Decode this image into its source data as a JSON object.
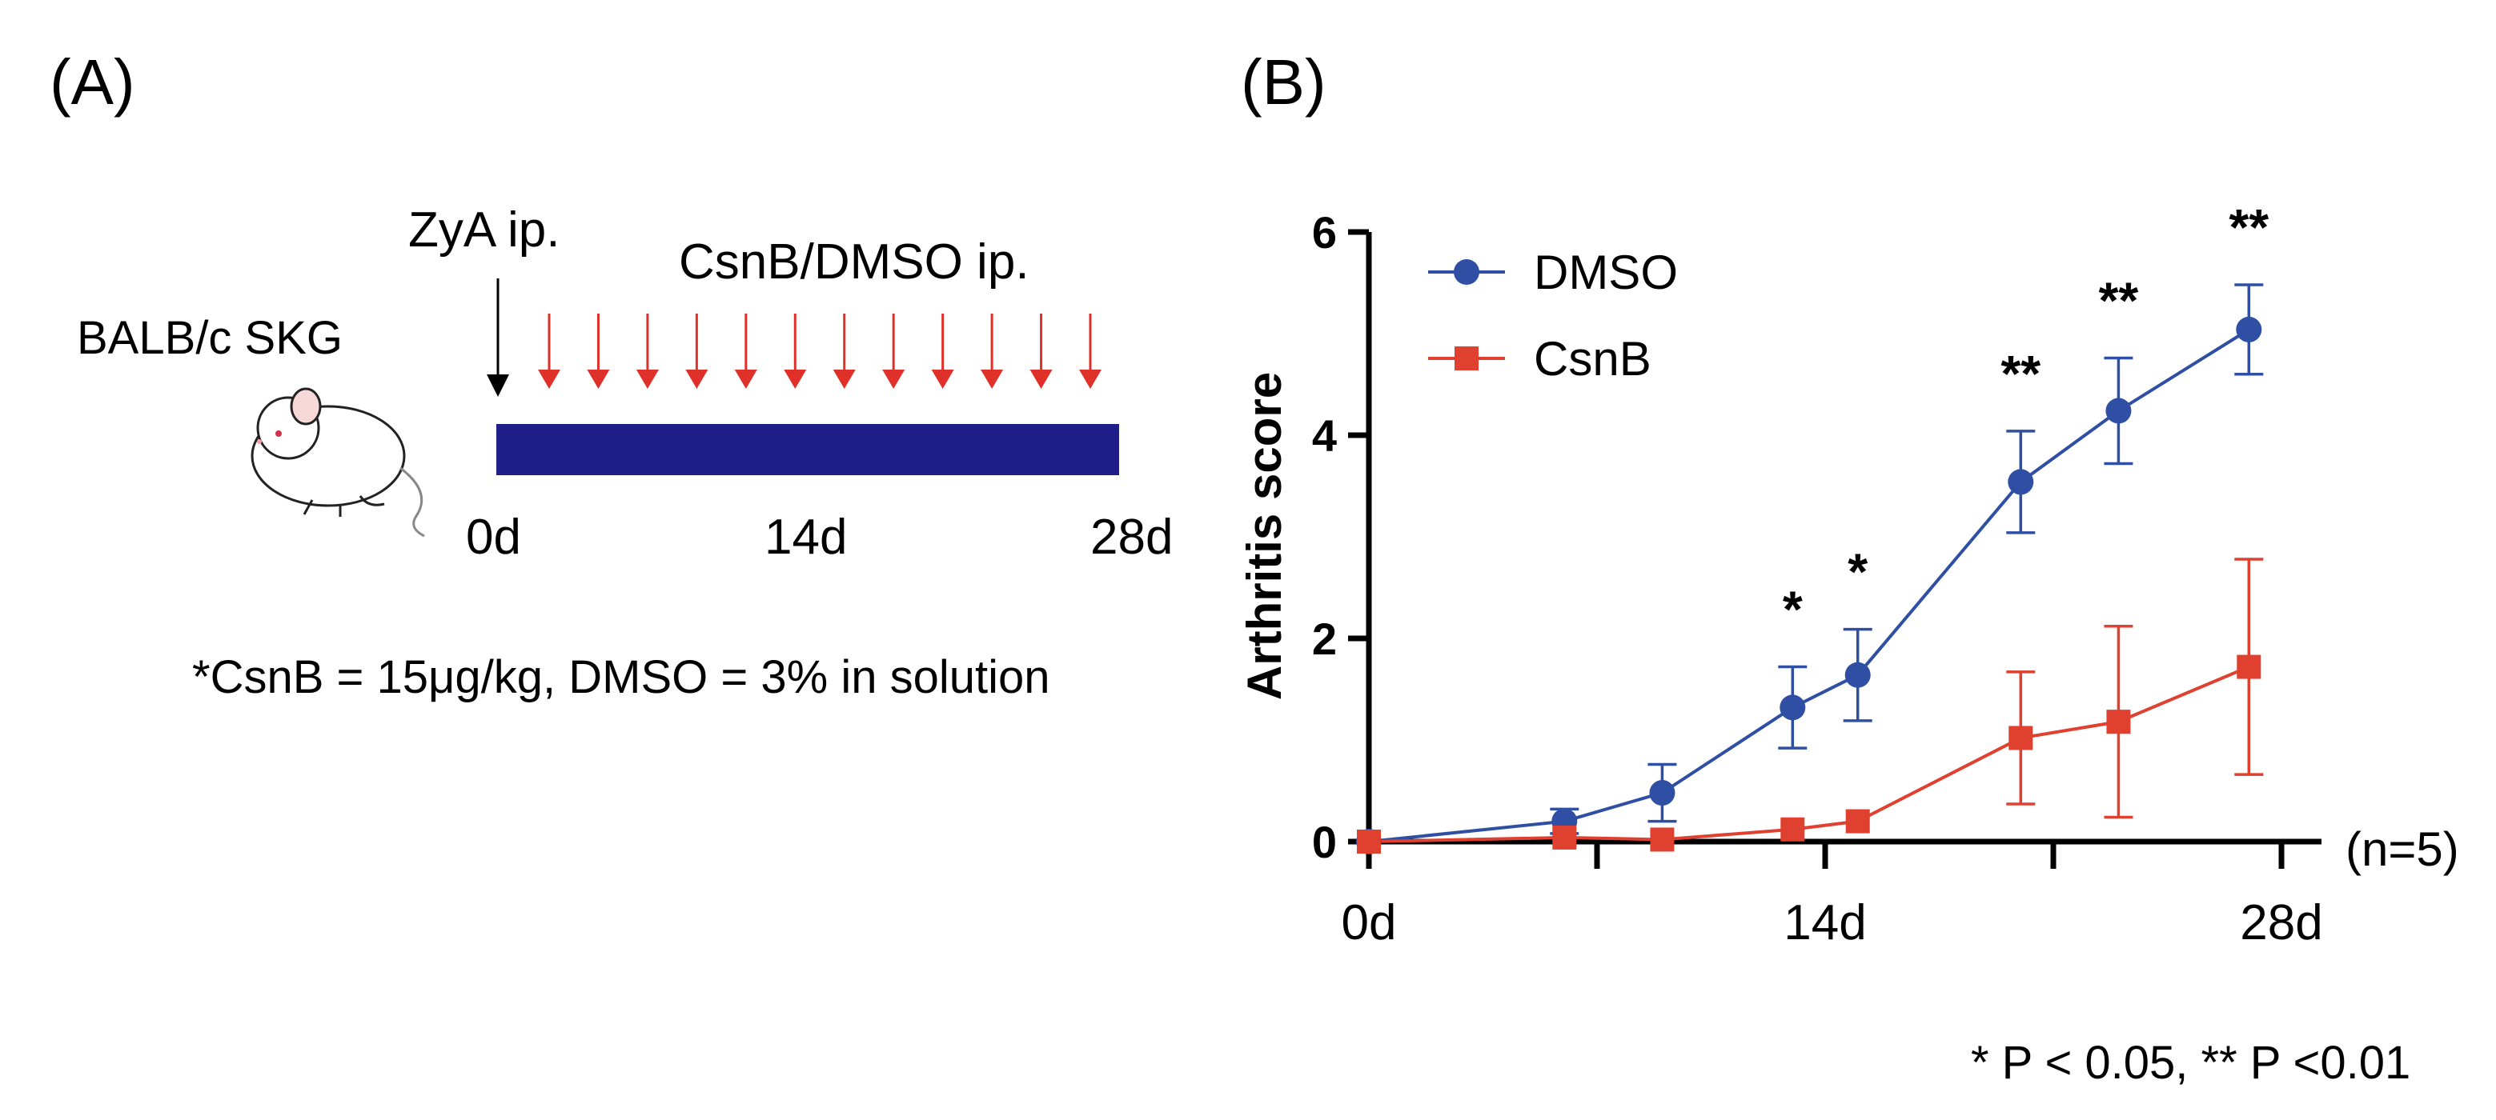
{
  "panel_a": {
    "label": "(A)",
    "strain": "BALB/c SKG",
    "zya_label": "ZyA ip.",
    "treatment_label": "CsnB/DMSO ip.",
    "injection_count": 12,
    "days": [
      "0d",
      "14d",
      "28d"
    ],
    "footnote": "*CsnB = 15μg/kg, DMSO = 3% in solution",
    "colors": {
      "bar": "#1f1f8a",
      "arrow_red": "#e0302a",
      "arrow_black": "#000000"
    },
    "mouse_icon": "mouse-icon"
  },
  "panel_b": {
    "label": "(B)",
    "n_label": "(n=5)",
    "pvalue_note": "*  P < 0.05, ** P <0.01"
  },
  "chart_data": {
    "type": "line",
    "xlabel": "",
    "ylabel": "Arthritis score",
    "xlim": [
      0,
      28
    ],
    "ylim": [
      0,
      6
    ],
    "x_ticks": [
      0,
      7,
      14,
      21,
      28
    ],
    "x_tick_labels": [
      {
        "x": 0,
        "label": "0d"
      },
      {
        "x": 14,
        "label": "14d"
      },
      {
        "x": 28,
        "label": "28d"
      }
    ],
    "y_ticks": [
      0,
      2,
      4,
      6
    ],
    "grid": false,
    "legend_position": "top-left",
    "series": [
      {
        "name": "DMSO",
        "color": "#2e4fa3",
        "marker": "circle",
        "x": [
          0,
          6,
          9,
          13,
          15,
          20,
          23,
          27
        ],
        "y": [
          0,
          0.2,
          0.48,
          1.32,
          1.64,
          3.54,
          4.24,
          5.04
        ],
        "error": [
          0,
          0.12,
          0.28,
          0.4,
          0.45,
          0.5,
          0.52,
          0.44
        ]
      },
      {
        "name": "CsnB",
        "color": "#e0402f",
        "marker": "square",
        "x": [
          0,
          6,
          9,
          13,
          15,
          20,
          23,
          27
        ],
        "y": [
          0,
          0.04,
          0.02,
          0.12,
          0.2,
          1.02,
          1.18,
          1.72
        ],
        "error": [
          0,
          0,
          0,
          0,
          0,
          0.65,
          0.94,
          1.06
        ]
      }
    ],
    "significance": [
      {
        "x": 13,
        "label": "*"
      },
      {
        "x": 15,
        "label": "*"
      },
      {
        "x": 20,
        "label": "**"
      },
      {
        "x": 23,
        "label": "**"
      },
      {
        "x": 27,
        "label": "**"
      }
    ]
  }
}
